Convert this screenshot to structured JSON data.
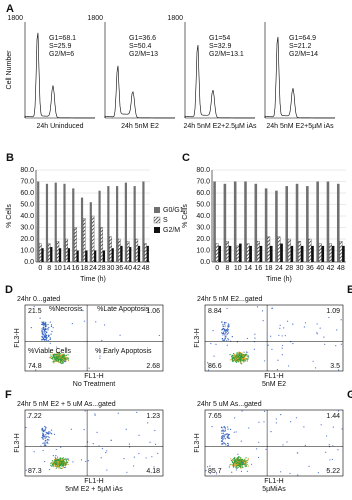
{
  "panel_a": {
    "label": "A",
    "y_label": "Cell Number",
    "histograms": [
      {
        "ymax": "1800",
        "g1": "G1=68.1",
        "s": "S=25.9",
        "g2m": "G2/M=6",
        "caption": "24h Uninduced"
      },
      {
        "ymax": "1800",
        "g1": "G1=36.6",
        "s": "S=50.4",
        "g2m": "G2/M=13",
        "caption": "24h 5nM E2"
      },
      {
        "ymax": "1800",
        "g1": "G1=54",
        "s": "S=32.9",
        "g2m": "G2/M=13.1",
        "caption": "24h 5nM E2+2.5µM iAs"
      },
      {
        "g1": "G1=64.9",
        "s": "S=21.2",
        "g2m": "G2/M=14",
        "caption": "24h 5nM E2+5µM iAs"
      }
    ]
  },
  "chart_data": [
    {
      "type": "bar",
      "label": "B",
      "y_label": "% Cells",
      "x_label": "Time (h)",
      "categories": [
        "0",
        "8",
        "10",
        "14",
        "16",
        "18",
        "24",
        "28",
        "30",
        "36",
        "40",
        "42",
        "48"
      ],
      "ylim": [
        0,
        80
      ],
      "yticks": [
        {
          "value": 0,
          "label": "0.0"
        },
        {
          "value": 10,
          "label": "10.0"
        },
        {
          "value": 20,
          "label": "20.0"
        },
        {
          "value": 30,
          "label": "30.0"
        },
        {
          "value": 40,
          "label": "40.0"
        },
        {
          "value": 50,
          "label": "50.0"
        },
        {
          "value": 60,
          "label": "60.0"
        },
        {
          "value": 70,
          "label": "70.0"
        },
        {
          "value": 80,
          "label": "80.0"
        }
      ],
      "legend": "right",
      "series": [
        {
          "name": "G0/G1",
          "color": "#707070",
          "values": [
            70,
            68,
            69,
            68,
            64,
            56,
            52,
            62,
            66,
            66,
            69,
            66,
            70
          ]
        },
        {
          "name": "S",
          "color": "#222222",
          "pattern": "hatch",
          "values": [
            16,
            16,
            18,
            20,
            30,
            38,
            40,
            30,
            22,
            20,
            18,
            20,
            16
          ]
        },
        {
          "name": "G2/M",
          "color": "#111111",
          "values": [
            12,
            13,
            12,
            12,
            10,
            10,
            10,
            10,
            12,
            14,
            13,
            14,
            14
          ]
        }
      ]
    },
    {
      "type": "bar",
      "label": "C",
      "y_label": "% Cells",
      "x_label": "Time (h)",
      "categories": [
        "0",
        "8",
        "10",
        "14",
        "16",
        "18",
        "24",
        "28",
        "30",
        "36",
        "40",
        "42",
        "48"
      ],
      "ylim": [
        0,
        80
      ],
      "yticks": [
        {
          "value": 0,
          "label": "0.0"
        },
        {
          "value": 10,
          "label": "10.0"
        },
        {
          "value": 20,
          "label": "20.0"
        },
        {
          "value": 30,
          "label": "30.0"
        },
        {
          "value": 40,
          "label": "40.0"
        },
        {
          "value": 50,
          "label": "50.0"
        },
        {
          "value": 60,
          "label": "60.0"
        },
        {
          "value": 70,
          "label": "70.0"
        },
        {
          "value": 80,
          "label": "80.0"
        }
      ],
      "series": [
        {
          "color": "#707070",
          "values": [
            70,
            68,
            70,
            70,
            68,
            64,
            62,
            66,
            68,
            66,
            70,
            70,
            68
          ]
        },
        {
          "color": "#222222",
          "pattern": "hatch",
          "values": [
            16,
            18,
            14,
            16,
            18,
            22,
            22,
            20,
            18,
            20,
            16,
            16,
            18
          ]
        },
        {
          "color": "#111111",
          "values": [
            14,
            14,
            16,
            14,
            14,
            14,
            16,
            14,
            14,
            14,
            14,
            14,
            14
          ]
        }
      ]
    }
  ],
  "flow_panels": [
    {
      "label": "D",
      "title": "24hr 0...gated",
      "ul": "21.5",
      "ur": "1.06",
      "ll": "74.8",
      "lr": "2.68",
      "ul_name": "%Necrosis",
      "ur_name": "%Late Apoptosis",
      "ll_name": "%Viable Cells",
      "lr_name": "% Early Apoptosis",
      "x_axis": "FL1-H",
      "y_axis": "FL3-H",
      "caption": "No Treatment"
    },
    {
      "label": "E",
      "title": "24hr 5 nM E2...gated",
      "ul": "8.84",
      "ur": "1.09",
      "ll": "86.6",
      "lr": "3.5",
      "x_axis": "FL1-H",
      "y_axis": "FL3-H",
      "caption": "5nM E2"
    },
    {
      "label": "F",
      "title": "24hr 5 nM E2 + 5 uM As...gated",
      "ul": "7.22",
      "ur": "1.23",
      "ll": "87.3",
      "lr": "4.18",
      "x_axis": "FL1-H",
      "y_axis": "FL3-H",
      "caption": "5nM E2 + 5µM iAs"
    },
    {
      "label": "G",
      "title": "24hr 5 uM As...gated",
      "ul": "7.65",
      "ur": "1.44",
      "ll": "85.7",
      "lr": "5.22",
      "x_axis": "FL1-H",
      "y_axis": "FL3-H",
      "caption": "5µMiAs"
    }
  ]
}
